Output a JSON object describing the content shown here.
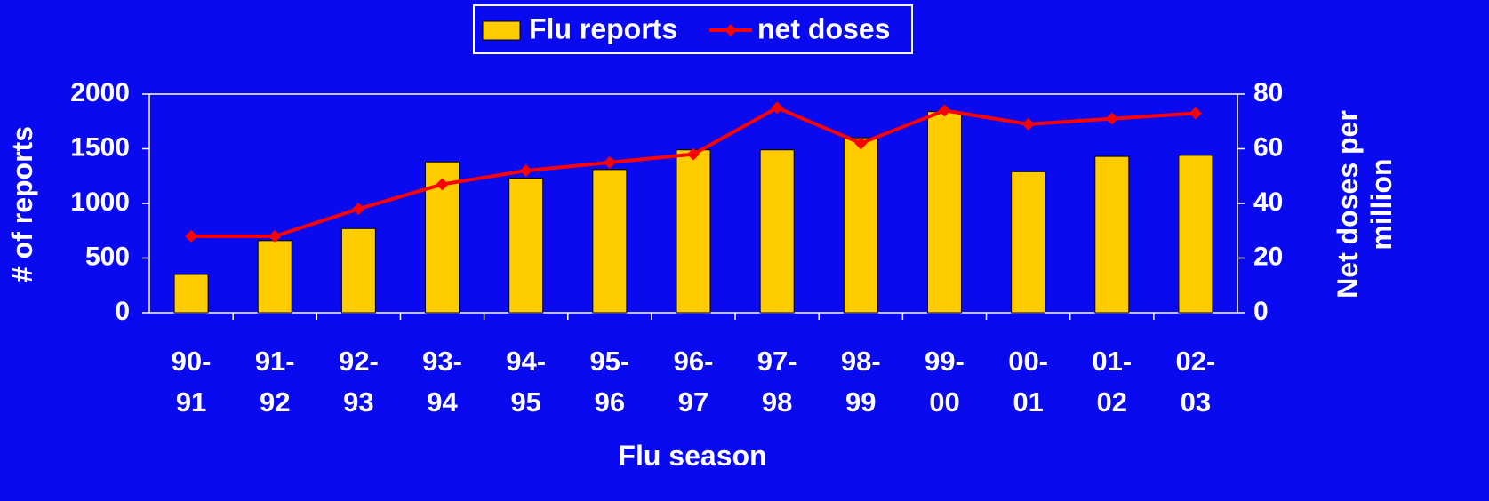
{
  "chart_data": {
    "type": "bar",
    "x_label": "Flu season",
    "y_label": "# of reports",
    "y2_label": "Net doses per million",
    "categories": [
      "90-91",
      "91-92",
      "92-93",
      "93-94",
      "94-95",
      "95-96",
      "96-97",
      "97-98",
      "98-99",
      "99-00",
      "00-01",
      "01-02",
      "02-03"
    ],
    "series": [
      {
        "name": "Flu reports",
        "type": "bar",
        "color": "#ffcc00",
        "values": [
          350,
          660,
          770,
          1380,
          1230,
          1310,
          1490,
          1490,
          1600,
          1840,
          1290,
          1430,
          1440
        ]
      },
      {
        "name": "net doses",
        "type": "line",
        "axis": "y2",
        "color": "#ff0000",
        "values": [
          28,
          28,
          38,
          47,
          52,
          55,
          58,
          75,
          62,
          74,
          69,
          71,
          73
        ]
      }
    ],
    "ylim": [
      0,
      2000
    ],
    "yticks": [
      0,
      500,
      1000,
      1500,
      2000
    ],
    "y2lim": [
      0,
      80
    ],
    "y2ticks": [
      0,
      20,
      40,
      60,
      80
    ],
    "grid": false,
    "legend": "top"
  }
}
